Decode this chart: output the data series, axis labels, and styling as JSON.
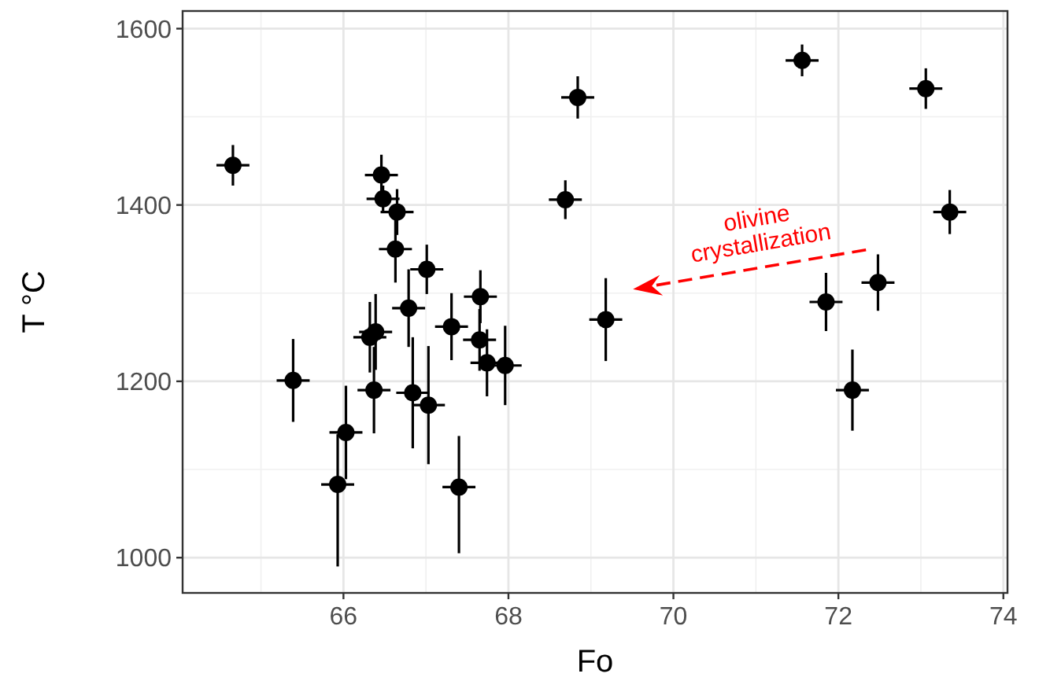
{
  "chart_data": {
    "type": "scatter",
    "xlabel": "Fo",
    "ylabel": "T °C",
    "xlim": [
      64.05,
      74.05
    ],
    "ylim": [
      960,
      1620
    ],
    "xticks": [
      66,
      68,
      70,
      72,
      74
    ],
    "yticks": [
      1000,
      1200,
      1400,
      1600
    ],
    "grid": true,
    "marker": "circle",
    "annotations": [
      "olivine crystallization"
    ],
    "series": [
      {
        "color": "#000000",
        "x": [
          64.66,
          65.39,
          66.46,
          66.48,
          66.65,
          66.63,
          67.01,
          66.79,
          66.39,
          66.32,
          67.31,
          67.66,
          67.65,
          67.74,
          67.96,
          66.37,
          66.84,
          67.03,
          66.03,
          65.93,
          67.4,
          68.84,
          68.69,
          69.18,
          71.56,
          73.06,
          73.35,
          72.48,
          71.85,
          72.17
        ],
        "values": [
          1445,
          1201,
          1434,
          1407,
          1392,
          1350,
          1327,
          1283,
          1256,
          1250,
          1262,
          1296,
          1247,
          1221,
          1218,
          1190,
          1187,
          1173,
          1142,
          1083,
          1080,
          1522,
          1406,
          1270,
          1564,
          1532,
          1392,
          1312,
          1290,
          1190
        ],
        "errors": [
          23,
          47,
          23,
          15,
          26,
          38,
          28,
          44,
          43,
          40,
          38,
          30,
          35,
          38,
          45,
          49,
          63,
          67,
          53,
          [
            990,
            1140
          ],
          [
            1005,
            1138
          ],
          24,
          22,
          47,
          18,
          23,
          25,
          32,
          33,
          46
        ],
        "xerrors": [
          0.2,
          0.2,
          0.2,
          0.2,
          0.2,
          0.2,
          0.2,
          0.2,
          0.2,
          0.2,
          0.2,
          0.2,
          0.2,
          0.2,
          0.2,
          0.2,
          0.2,
          0.2,
          0.2,
          0.2,
          0.2,
          0.2,
          0.2,
          0.2,
          0.2,
          0.2,
          0.2,
          0.2,
          0.2,
          0.2
        ]
      }
    ]
  }
}
